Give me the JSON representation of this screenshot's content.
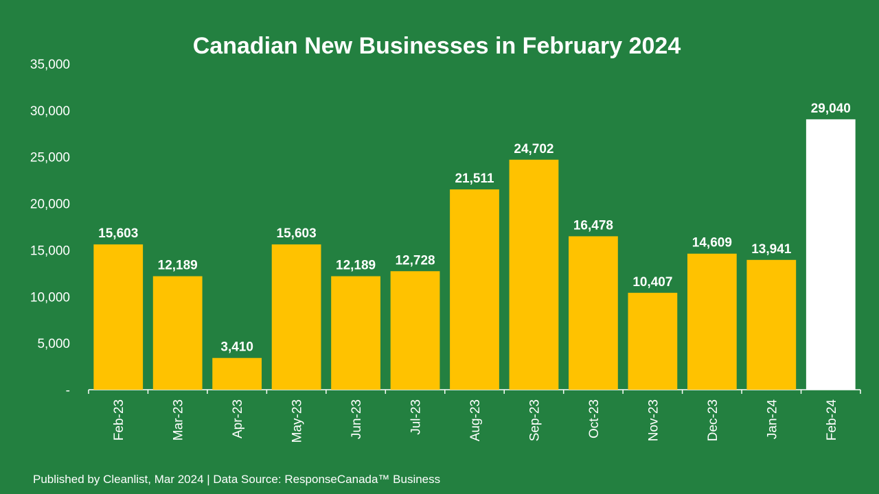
{
  "colors": {
    "background": "#238040",
    "bar": "#ffc200",
    "highlight_bar": "#ffffff",
    "text": "#ffffff",
    "axis": "#ffffff"
  },
  "footer": "Published by Cleanlist, Mar 2024 | Data Source: ResponseCanada™ Business",
  "chart_data": {
    "type": "bar",
    "title": "Canadian New Businesses in February 2024",
    "xlabel": "",
    "ylabel": "",
    "categories": [
      "Feb-23",
      "Mar-23",
      "Apr-23",
      "May-23",
      "Jun-23",
      "Jul-23",
      "Aug-23",
      "Sep-23",
      "Oct-23",
      "Nov-23",
      "Dec-23",
      "Jan-24",
      "Feb-24"
    ],
    "values": [
      15603,
      12189,
      3410,
      15603,
      12189,
      12728,
      21511,
      24702,
      16478,
      10407,
      14609,
      13941,
      29040
    ],
    "data_labels": [
      "15,603",
      "12,189",
      "3,410",
      "15,603",
      "12,189",
      "12,728",
      "21,511",
      "24,702",
      "16,478",
      "10,407",
      "14,609",
      "13,941",
      "29,040"
    ],
    "highlight": "Feb-24",
    "ylim": [
      0,
      35000
    ],
    "yticks": [
      0,
      5000,
      10000,
      15000,
      20000,
      25000,
      30000,
      35000
    ],
    "ytick_labels": [
      "-",
      "5,000",
      "10,000",
      "15,000",
      "20,000",
      "25,000",
      "30,000",
      "35,000"
    ],
    "grid": false,
    "legend": "none"
  }
}
